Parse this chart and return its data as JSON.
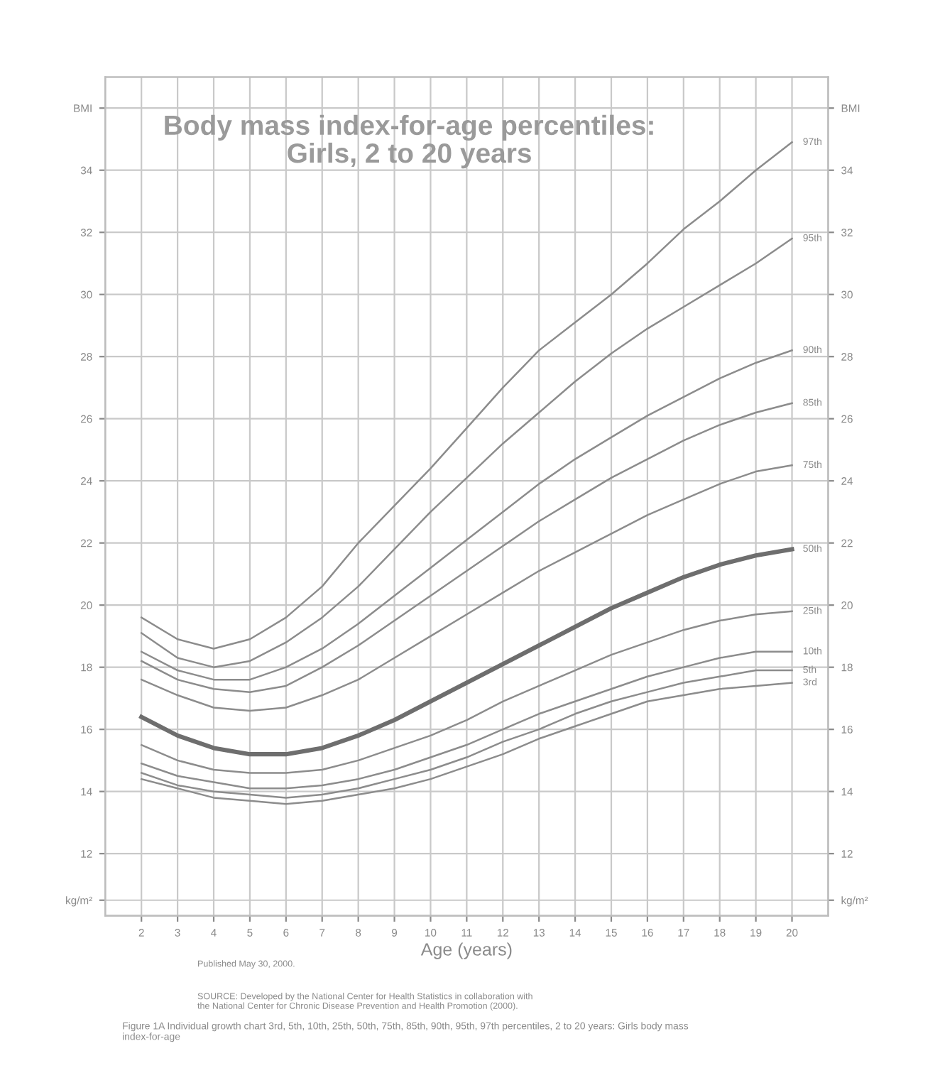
{
  "chart_data": {
    "type": "line",
    "title": "Body mass index-for-age percentiles:\nGirls, 2 to 20 years",
    "xlabel": "Age (years)",
    "x": [
      2,
      3,
      4,
      5,
      6,
      7,
      8,
      9,
      10,
      11,
      12,
      13,
      14,
      15,
      16,
      17,
      18,
      19,
      20
    ],
    "series": [
      {
        "name": "97th",
        "color": "#8c8c8c",
        "values": [
          19.6,
          18.9,
          18.6,
          18.9,
          19.6,
          20.6,
          22.0,
          23.2,
          24.4,
          25.7,
          27.0,
          28.2,
          29.1,
          30.0,
          31.0,
          32.1,
          33.0,
          34.0,
          34.9
        ]
      },
      {
        "name": "95th",
        "color": "#8c8c8c",
        "values": [
          19.1,
          18.3,
          18.0,
          18.2,
          18.8,
          19.6,
          20.6,
          21.8,
          23.0,
          24.1,
          25.2,
          26.2,
          27.2,
          28.1,
          28.9,
          29.6,
          30.3,
          31.0,
          31.8
        ]
      },
      {
        "name": "90th",
        "color": "#8c8c8c",
        "values": [
          18.5,
          17.9,
          17.6,
          17.6,
          18.0,
          18.6,
          19.4,
          20.3,
          21.2,
          22.1,
          23.0,
          23.9,
          24.7,
          25.4,
          26.1,
          26.7,
          27.3,
          27.8,
          28.2
        ]
      },
      {
        "name": "85th",
        "color": "#8c8c8c",
        "values": [
          18.2,
          17.6,
          17.3,
          17.2,
          17.4,
          18.0,
          18.7,
          19.5,
          20.3,
          21.1,
          21.9,
          22.7,
          23.4,
          24.1,
          24.7,
          25.3,
          25.8,
          26.2,
          26.5
        ]
      },
      {
        "name": "75th",
        "color": "#8c8c8c",
        "values": [
          17.6,
          17.1,
          16.7,
          16.6,
          16.7,
          17.1,
          17.6,
          18.3,
          19.0,
          19.7,
          20.4,
          21.1,
          21.7,
          22.3,
          22.9,
          23.4,
          23.9,
          24.3,
          24.5
        ]
      },
      {
        "name": "50th",
        "color": "#6e6e6e",
        "values": [
          16.4,
          15.8,
          15.4,
          15.2,
          15.2,
          15.4,
          15.8,
          16.3,
          16.9,
          17.5,
          18.1,
          18.7,
          19.3,
          19.9,
          20.4,
          20.9,
          21.3,
          21.6,
          21.8
        ]
      },
      {
        "name": "25th",
        "color": "#8c8c8c",
        "values": [
          15.5,
          15.0,
          14.7,
          14.6,
          14.6,
          14.7,
          15.0,
          15.4,
          15.8,
          16.3,
          16.9,
          17.4,
          17.9,
          18.4,
          18.8,
          19.2,
          19.5,
          19.7,
          19.8
        ]
      },
      {
        "name": "10th",
        "color": "#8c8c8c",
        "values": [
          14.9,
          14.5,
          14.3,
          14.1,
          14.1,
          14.2,
          14.4,
          14.7,
          15.1,
          15.5,
          16.0,
          16.5,
          16.9,
          17.3,
          17.7,
          18.0,
          18.3,
          18.5,
          18.5
        ]
      },
      {
        "name": "5th",
        "color": "#8c8c8c",
        "values": [
          14.6,
          14.2,
          14.0,
          13.9,
          13.8,
          13.9,
          14.1,
          14.4,
          14.7,
          15.1,
          15.6,
          16.0,
          16.5,
          16.9,
          17.2,
          17.5,
          17.7,
          17.9,
          17.9
        ]
      },
      {
        "name": "3rd",
        "color": "#8c8c8c",
        "values": [
          14.4,
          14.1,
          13.8,
          13.7,
          13.6,
          13.7,
          13.9,
          14.1,
          14.4,
          14.8,
          15.2,
          15.7,
          16.1,
          16.5,
          16.9,
          17.1,
          17.3,
          17.4,
          17.5
        ]
      }
    ],
    "xlim": [
      1,
      21
    ],
    "xticks": [
      2,
      3,
      4,
      5,
      6,
      7,
      8,
      9,
      10,
      11,
      12,
      13,
      14,
      15,
      16,
      17,
      18,
      19,
      20
    ],
    "ylim": [
      10,
      37
    ],
    "yticks": [
      {
        "value": 10.5,
        "label": "kg/m²"
      },
      12,
      14,
      16,
      18,
      20,
      22,
      24,
      26,
      28,
      30,
      32,
      34,
      {
        "value": 36,
        "label": "BMI"
      }
    ],
    "y2lim": [
      10,
      37
    ],
    "y2ticks": [
      {
        "value": 10.5,
        "label": "kg/m²"
      },
      12,
      14,
      16,
      18,
      20,
      22,
      24,
      26,
      28,
      30,
      32,
      34,
      {
        "value": 36,
        "label": "BMI"
      }
    ],
    "grid": true,
    "legend": false,
    "marker": "none",
    "line_style": "solid",
    "annotations": [
      "Published May 30, 2000.",
      "SOURCE: Developed by the National Center for Health Statistics in collaboration with\nthe National Center for Chronic Disease Prevention and Health Promotion (2000).",
      "Figure 1A Individual growth chart 3rd, 5th, 10th, 25th, 50th, 75th, 85th, 90th, 95th, 97th percentiles, 2 to 20 years: Girls body mass\nindex-for-age"
    ]
  }
}
